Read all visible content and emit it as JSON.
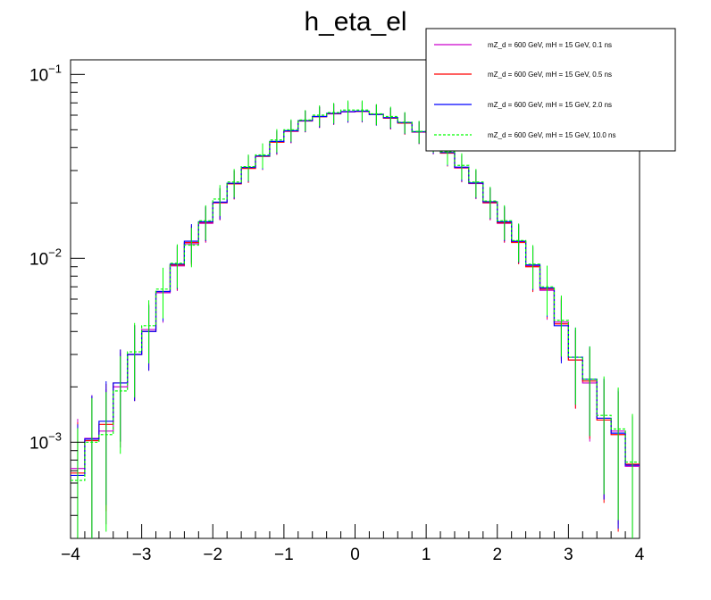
{
  "chart_data": {
    "type": "line",
    "title": "h_eta_el",
    "xlabel": "",
    "ylabel": "",
    "xlim": [
      -4,
      4
    ],
    "ylim": [
      0.0003,
      0.12
    ],
    "y_scale": "log",
    "grid": false,
    "legend_position": "top-right",
    "x_ticks": [
      "−4",
      "−3",
      "−2",
      "−1",
      "0",
      "1",
      "2",
      "3",
      "4"
    ],
    "y_ticks": [
      {
        "base": "10",
        "exp": "−1",
        "value": 0.1
      },
      {
        "base": "10",
        "exp": "−2",
        "value": 0.01
      },
      {
        "base": "10",
        "exp": "−3",
        "value": 0.001
      }
    ],
    "bin_edges": [
      -4.0,
      -3.8,
      -3.6,
      -3.4,
      -3.2,
      -3.0,
      -2.8,
      -2.6,
      -2.4,
      -2.2,
      -2.0,
      -1.8,
      -1.6,
      -1.4,
      -1.2,
      -1.0,
      -0.8,
      -0.6,
      -0.4,
      -0.2,
      0.0,
      0.2,
      0.4,
      0.6,
      0.8,
      1.0,
      1.2,
      1.4,
      1.6,
      1.8,
      2.0,
      2.2,
      2.4,
      2.6,
      2.8,
      3.0,
      3.2,
      3.4,
      3.6,
      3.8,
      4.0
    ],
    "series": [
      {
        "name": "mZ_d = 600 GeV, mH = 15 GeV, 0.1 ns",
        "color": "#cc00cc",
        "dashed": false,
        "values": [
          0.00072,
          0.00105,
          0.00115,
          0.002,
          0.003,
          0.0041,
          0.0065,
          0.0091,
          0.012,
          0.0155,
          0.02,
          0.0255,
          0.031,
          0.036,
          0.043,
          0.049,
          0.056,
          0.059,
          0.061,
          0.0625,
          0.063,
          0.0605,
          0.058,
          0.0545,
          0.0485,
          0.043,
          0.0375,
          0.031,
          0.0255,
          0.02,
          0.0155,
          0.0123,
          0.0091,
          0.0067,
          0.0045,
          0.0028,
          0.0021,
          0.00135,
          0.00115,
          0.00074
        ]
      },
      {
        "name": "mZ_d = 600 GeV, mH = 15 GeV, 0.5 ns",
        "color": "#ff0000",
        "dashed": false,
        "values": [
          0.00068,
          0.00102,
          0.00125,
          0.0021,
          0.003,
          0.004,
          0.0066,
          0.0092,
          0.0122,
          0.0157,
          0.0201,
          0.0254,
          0.0308,
          0.0358,
          0.0428,
          0.0492,
          0.0558,
          0.0588,
          0.0612,
          0.0627,
          0.0628,
          0.0607,
          0.0578,
          0.0543,
          0.0487,
          0.0432,
          0.0373,
          0.0311,
          0.0256,
          0.0201,
          0.0156,
          0.0122,
          0.009,
          0.0068,
          0.0044,
          0.0028,
          0.00215,
          0.00132,
          0.0011,
          0.00076
        ]
      },
      {
        "name": "mZ_d = 600 GeV, mH = 15 GeV, 2.0 ns",
        "color": "#0000ff",
        "dashed": false,
        "values": [
          0.00066,
          0.00104,
          0.0013,
          0.0021,
          0.003,
          0.004,
          0.0066,
          0.0093,
          0.0124,
          0.0158,
          0.0202,
          0.0256,
          0.0312,
          0.036,
          0.0432,
          0.0494,
          0.056,
          0.059,
          0.0614,
          0.0628,
          0.0631,
          0.0606,
          0.0582,
          0.0547,
          0.0488,
          0.0433,
          0.0376,
          0.0313,
          0.0257,
          0.0203,
          0.0158,
          0.0124,
          0.0092,
          0.0069,
          0.0043,
          0.0029,
          0.0022,
          0.00135,
          0.00112,
          0.00075
        ]
      },
      {
        "name": "mZ_d = 600 GeV, mH = 15 GeV, 10.0 ns",
        "color": "#00ff00",
        "dashed": true,
        "values": [
          0.00062,
          0.001,
          0.0011,
          0.0019,
          0.0031,
          0.0043,
          0.0068,
          0.0094,
          0.0118,
          0.016,
          0.021,
          0.026,
          0.0315,
          0.0365,
          0.044,
          0.05,
          0.0565,
          0.06,
          0.062,
          0.064,
          0.064,
          0.061,
          0.059,
          0.055,
          0.049,
          0.044,
          0.038,
          0.032,
          0.026,
          0.0205,
          0.016,
          0.0125,
          0.0093,
          0.007,
          0.0046,
          0.0029,
          0.0022,
          0.0014,
          0.00118,
          0.00078
        ]
      }
    ]
  }
}
